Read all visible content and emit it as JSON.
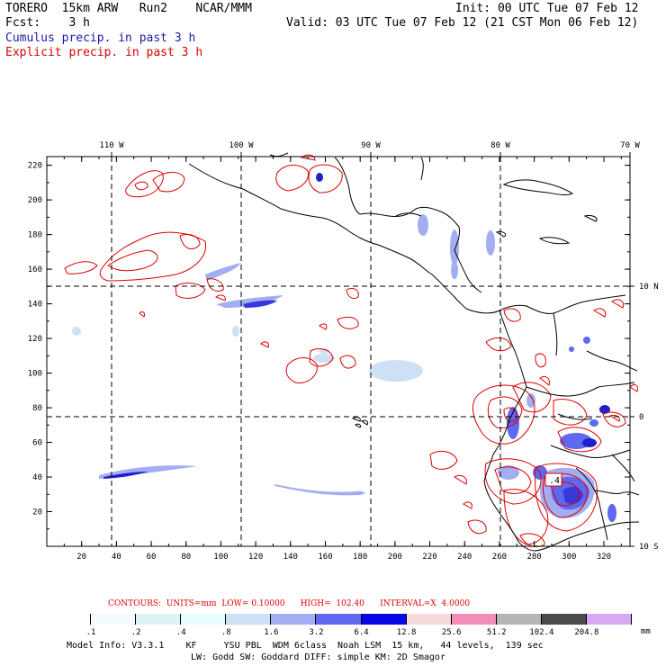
{
  "header": {
    "model": "TORERO  15km ARW   Run2    NCAR/MMM",
    "init": "Init: 00 UTC Tue 07 Feb 12",
    "fcst": "Fcst:    3 h",
    "valid": "Valid: 03 UTC Tue 07 Feb 12 (21 CST Mon 06 Feb 12)",
    "cumulus": "Cumulus precip. in past 3 h",
    "explicit": "Explicit precip. in past 3 h"
  },
  "colors": {
    "cumulus": "#1a1aa6",
    "explicit": "#dd0000",
    "land": "#000000",
    "grid": "#000000"
  },
  "map": {
    "top_labels": [
      "110 W",
      "100 W",
      "90 W",
      "80 W",
      "70 W"
    ],
    "right_labels": [
      "10 N",
      "0",
      "10 S"
    ],
    "y_ticks": [
      "220",
      "200",
      "180",
      "160",
      "140",
      "120",
      "100",
      "80",
      "60",
      "40",
      "20"
    ],
    "x_ticks": [
      "20",
      "40",
      "60",
      "80",
      "100",
      "120",
      "140",
      "160",
      "180",
      "200",
      "220",
      "240",
      "260",
      "280",
      "300",
      "320"
    ],
    "x_range": [
      0,
      335
    ],
    "y_range": [
      0,
      225
    ]
  },
  "contours": {
    "text": "CONTOURS:  UNITS=mm  LOW= 0.10000      HIGH=  102.40      INTERVAL=X  4.0000"
  },
  "colorbar": {
    "labels": [
      ".1",
      ".2",
      ".4",
      ".8",
      "1.6",
      "3.2",
      "6.4",
      "12.8",
      "25.6",
      "51.2",
      "102.4",
      "204.8"
    ],
    "unit": "mm",
    "colors": [
      "#ffffff",
      "#f4fbfc",
      "#dcf4f6",
      "#e6fcfe",
      "#cde0f6",
      "#a3aef2",
      "#5f68f0",
      "#0707e8",
      "#f6d9d9",
      "#f28cb9",
      "#b6b6b6",
      "#4a4a4a",
      "#d8a8f2"
    ]
  },
  "footer": {
    "line1": "Model Info: V3.3.1    KF     YSU PBL  WDM 6class  Noah LSM  15 km,   44 levels,  139 sec",
    "line2": "LW: Godd SW: Goddard DIFF: simple KM: 2D Smagor"
  }
}
